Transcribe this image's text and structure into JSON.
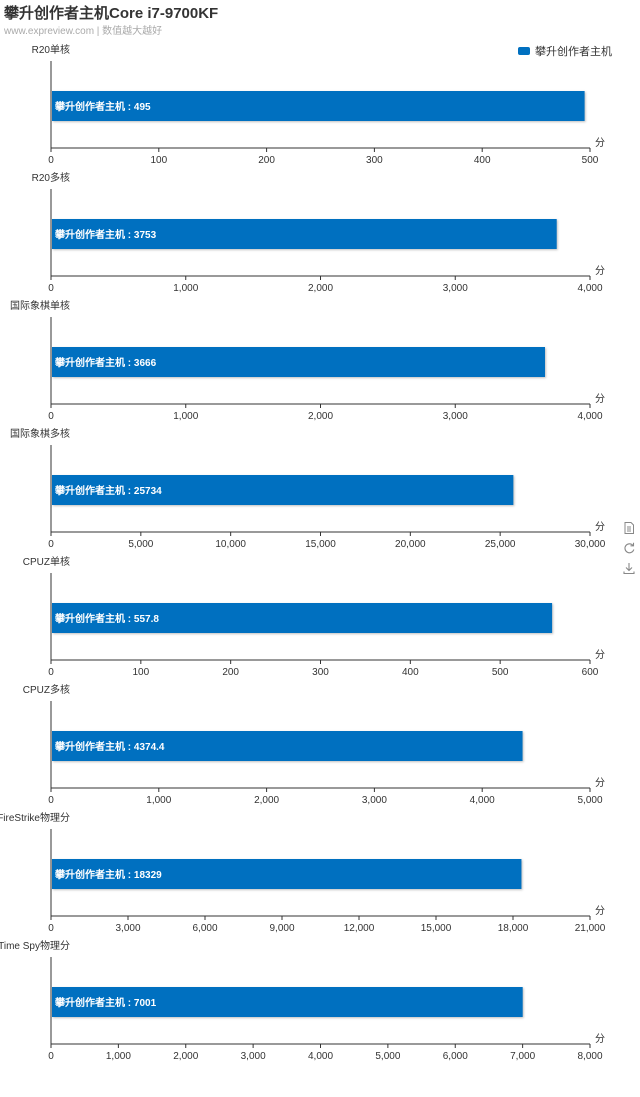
{
  "title": "攀升创作者主机Core i7-9700KF",
  "subtitle": "www.expreview.com | 数值越大越好",
  "legend": {
    "label": "攀升创作者主机",
    "color": "#0070c0"
  },
  "unit": "分",
  "toolbox": [
    "data-view-icon",
    "restore-icon",
    "save-image-icon"
  ],
  "chart_data": [
    {
      "type": "bar",
      "title": "R20单核",
      "categories": [
        "攀升创作者主机"
      ],
      "values": [
        495
      ],
      "value_label": "攀升创作者主机 : 495",
      "xlim": [
        0,
        500
      ],
      "ticks": [
        "0",
        "100",
        "200",
        "300",
        "400",
        "500"
      ]
    },
    {
      "type": "bar",
      "title": "R20多核",
      "categories": [
        "攀升创作者主机"
      ],
      "values": [
        3753
      ],
      "value_label": "攀升创作者主机 : 3753",
      "xlim": [
        0,
        4000
      ],
      "ticks": [
        "0",
        "1,000",
        "2,000",
        "3,000",
        "4,000"
      ]
    },
    {
      "type": "bar",
      "title": "国际象棋单核",
      "categories": [
        "攀升创作者主机"
      ],
      "values": [
        3666
      ],
      "value_label": "攀升创作者主机 : 3666",
      "xlim": [
        0,
        4000
      ],
      "ticks": [
        "0",
        "1,000",
        "2,000",
        "3,000",
        "4,000"
      ]
    },
    {
      "type": "bar",
      "title": "国际象棋多核",
      "categories": [
        "攀升创作者主机"
      ],
      "values": [
        25734
      ],
      "value_label": "攀升创作者主机 : 25734",
      "xlim": [
        0,
        30000
      ],
      "ticks": [
        "0",
        "5,000",
        "10,000",
        "15,000",
        "20,000",
        "25,000",
        "30,000"
      ]
    },
    {
      "type": "bar",
      "title": "CPUZ单核",
      "categories": [
        "攀升创作者主机"
      ],
      "values": [
        557.8
      ],
      "value_label": "攀升创作者主机 : 557.8",
      "xlim": [
        0,
        600
      ],
      "ticks": [
        "0",
        "100",
        "200",
        "300",
        "400",
        "500",
        "600"
      ]
    },
    {
      "type": "bar",
      "title": "CPUZ多核",
      "categories": [
        "攀升创作者主机"
      ],
      "values": [
        4374.4
      ],
      "value_label": "攀升创作者主机 : 4374.4",
      "xlim": [
        0,
        5000
      ],
      "ticks": [
        "0",
        "1,000",
        "2,000",
        "3,000",
        "4,000",
        "5,000"
      ]
    },
    {
      "type": "bar",
      "title": "FireStrike物理分",
      "categories": [
        "攀升创作者主机"
      ],
      "values": [
        18329
      ],
      "value_label": "攀升创作者主机 : 18329",
      "xlim": [
        0,
        21000
      ],
      "ticks": [
        "0",
        "3,000",
        "6,000",
        "9,000",
        "12,000",
        "15,000",
        "18,000",
        "21,000"
      ]
    },
    {
      "type": "bar",
      "title": "Time Spy物理分",
      "categories": [
        "攀升创作者主机"
      ],
      "values": [
        7001
      ],
      "value_label": "攀升创作者主机 : 7001",
      "xlim": [
        0,
        8000
      ],
      "ticks": [
        "0",
        "1,000",
        "2,000",
        "3,000",
        "4,000",
        "5,000",
        "6,000",
        "7,000",
        "8,000"
      ]
    }
  ]
}
